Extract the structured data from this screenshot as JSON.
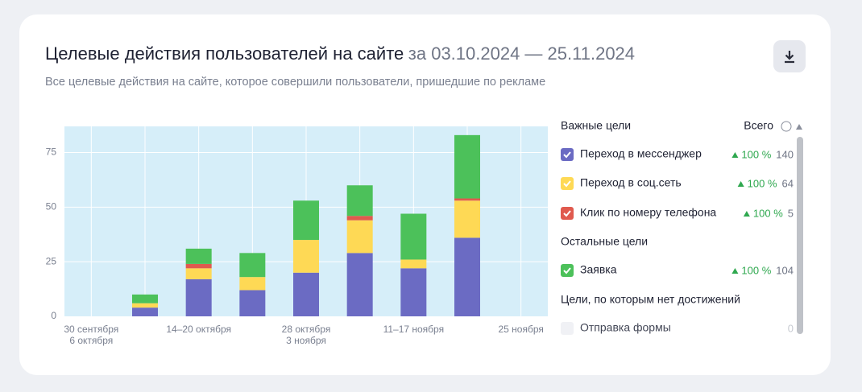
{
  "header": {
    "title": "Целевые действия пользователей на сайте",
    "period": "за 03.10.2024 — 25.11.2024",
    "subtitle": "Все целевые действия на сайте, которое совершили пользователи, пришедшие по рекламе"
  },
  "chart_data": {
    "type": "stacked_bar",
    "categories": [
      [
        "30 сентября",
        "6 октября"
      ],
      null,
      [
        "14–20 октября"
      ],
      null,
      [
        "28 октября",
        "3 ноября"
      ],
      null,
      [
        "11–17 ноября"
      ],
      null,
      [
        "25 ноября"
      ]
    ],
    "series": [
      {
        "name": "Переход в мессенджер",
        "color": "#6b6bc3",
        "values": [
          0,
          4,
          17,
          12,
          20,
          29,
          22,
          36,
          0
        ],
        "change": "100 %",
        "total": 140
      },
      {
        "name": "Переход в соц.сеть",
        "color": "#fed955",
        "values": [
          0,
          2,
          5,
          6,
          15,
          15,
          4,
          17,
          0
        ],
        "change": "100 %",
        "total": 64
      },
      {
        "name": "Клик по номеру телефона",
        "color": "#e05a4e",
        "values": [
          0,
          0,
          2,
          0,
          0,
          2,
          0,
          1,
          0
        ],
        "change": "100 %",
        "total": 5
      },
      {
        "name": "Заявка",
        "color": "#4cc15a",
        "values": [
          0,
          4,
          7,
          11,
          18,
          14,
          21,
          29,
          0
        ],
        "change": "100 %",
        "total": 104
      }
    ],
    "ylim": [
      0,
      87
    ],
    "yticks": [
      0,
      25,
      50,
      75
    ],
    "grid": true
  },
  "legend": {
    "important": "Важные цели",
    "total_header": "Всего",
    "other": "Остальные цели",
    "none": "Цели, по которым нет достижений",
    "none_items": [
      {
        "name": "Отправка формы",
        "total": 0
      }
    ]
  }
}
